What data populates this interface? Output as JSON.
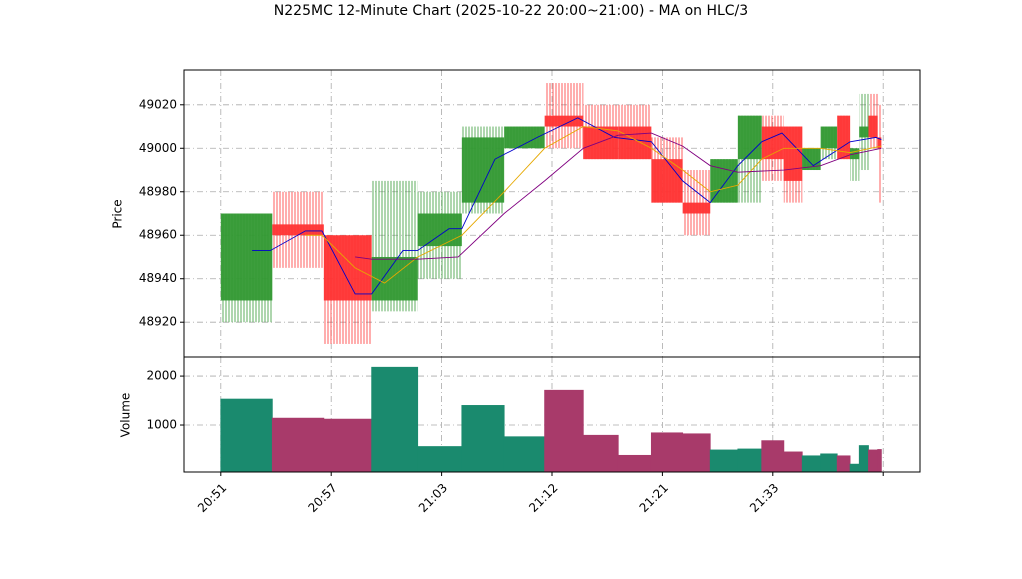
{
  "chart_data": {
    "type": "candlestick",
    "title": "N225MC 12-Minute Chart (2025-10-22 20:00~21:00) - MA on HLC/3",
    "ylabel": "Price",
    "volume_ylabel": "Volume",
    "up_color": "#339933",
    "down_color": "#ff3333",
    "volume_up_color": "#1a8a6e",
    "volume_down_color": "#a83a6a",
    "grid": true,
    "xlim": [
      -2,
      38
    ],
    "xticks": [
      {
        "value": 0,
        "label": "20:51"
      },
      {
        "value": 6,
        "label": "20:57"
      },
      {
        "value": 12,
        "label": "21:03"
      },
      {
        "value": 18,
        "label": "21:12"
      },
      {
        "value": 24,
        "label": "21:21"
      },
      {
        "value": 30,
        "label": "21:33"
      },
      {
        "value": 36,
        "label": null
      }
    ],
    "ylim": [
      48904,
      49036
    ],
    "yticks": [
      48920,
      48940,
      48960,
      48980,
      49000,
      49020
    ],
    "volume_ylim": [
      40,
      2390
    ],
    "volume_yticks": [
      1000,
      2000
    ],
    "x": [
      0,
      2.8,
      5.6,
      8.2,
      10.7,
      13.1,
      15.4,
      17.6,
      19.7,
      21.6,
      23.4,
      25.1,
      26.6,
      28.1,
      29.4,
      30.6,
      31.6,
      32.6,
      33.5,
      34.2,
      34.7,
      35.2,
      35.7
    ],
    "x_end": [
      2.8,
      5.6,
      8.2,
      10.7,
      13.1,
      15.4,
      17.6,
      19.7,
      21.6,
      23.4,
      25.1,
      26.6,
      28.1,
      29.4,
      30.6,
      31.6,
      32.6,
      33.5,
      34.2,
      34.7,
      35.2,
      35.7,
      35.9
    ],
    "open": [
      48930,
      48965,
      48960,
      48930,
      48955,
      48975,
      49000,
      49015,
      49010,
      49010,
      48995,
      48975,
      48975,
      48995,
      49010,
      49010,
      48990,
      49000,
      49015,
      48995,
      49005,
      49015,
      49005
    ],
    "high": [
      48970,
      48980,
      48960,
      48985,
      48980,
      49010,
      49010,
      49030,
      49020,
      49020,
      49005,
      48990,
      48995,
      49015,
      49015,
      49010,
      49000,
      49010,
      49015,
      49000,
      49025,
      49025,
      49020
    ],
    "low": [
      48920,
      48945,
      48910,
      48925,
      48940,
      48970,
      49000,
      49000,
      48995,
      48995,
      48975,
      48960,
      48975,
      48975,
      48985,
      48975,
      48990,
      48995,
      48995,
      48985,
      48990,
      49000,
      48975
    ],
    "close": [
      48970,
      48960,
      48930,
      48950,
      48970,
      49005,
      49010,
      49010,
      48995,
      48995,
      48975,
      48970,
      48995,
      49015,
      48995,
      48985,
      49000,
      49010,
      48995,
      49000,
      49010,
      49005,
      49000
    ],
    "volume": [
      1530,
      1140,
      1120,
      2180,
      560,
      1400,
      760,
      1710,
      790,
      380,
      840,
      820,
      490,
      510,
      680,
      450,
      370,
      410,
      370,
      200,
      580,
      490,
      500
    ],
    "series": [
      {
        "color": "#0000cc",
        "x": [
          1.7,
          2.7,
          4.6,
          5.5,
          7.3,
          8.2,
          9.9,
          10.7,
          12.4,
          13.1,
          14.9,
          17.2,
          19.4,
          21.4,
          23.4,
          25.1,
          26.6,
          28.1,
          29.4,
          30.5,
          32.2,
          34.2,
          35.6,
          35.9
        ],
        "values": [
          48953,
          48953,
          48962,
          48962,
          48933,
          48933,
          48953,
          48953,
          48963,
          48963,
          48995,
          49005,
          49014,
          49005,
          49003,
          48985,
          48975,
          48992,
          49003,
          49007,
          48992,
          49003,
          49005,
          49004
        ]
      },
      {
        "color": "#e6a800",
        "x": [
          4.6,
          5.5,
          7.3,
          8.9,
          10.7,
          13.1,
          15.4,
          17.6,
          19.7,
          21.6,
          23.4,
          25.1,
          26.6,
          28.1,
          29.4,
          30.6,
          32.6,
          34.2,
          35.9
        ],
        "values": [
          48960,
          48960,
          48945,
          48938,
          48950,
          48960,
          48980,
          49000,
          49010,
          49008,
          49000,
          48990,
          48980,
          48983,
          48995,
          49000,
          49000,
          48998,
          49001
        ]
      },
      {
        "color": "#800080",
        "x": [
          7.3,
          8.2,
          10.7,
          12.9,
          15.4,
          17.6,
          19.7,
          21.6,
          23.4,
          25.1,
          26.6,
          28.1,
          30.6,
          32.6,
          34.2,
          35.9
        ],
        "values": [
          48950,
          48949,
          48949,
          48950,
          48970,
          48985,
          49000,
          49006,
          49007,
          49001,
          48992,
          48989,
          48990,
          48992,
          48997,
          49000
        ]
      }
    ]
  }
}
